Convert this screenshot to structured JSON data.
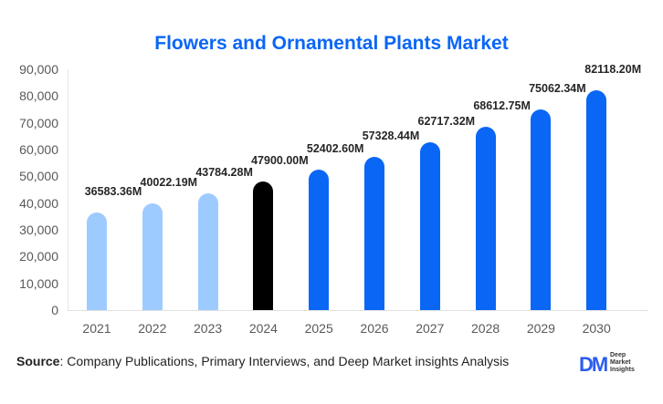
{
  "chart_data": {
    "type": "bar",
    "title": "Flowers and Ornamental Plants Market",
    "categories": [
      "2021",
      "2022",
      "2023",
      "2024",
      "2025",
      "2026",
      "2027",
      "2028",
      "2029",
      "2030"
    ],
    "values": [
      36583.36,
      40022.19,
      43784.28,
      47900.0,
      52402.6,
      57328.44,
      62717.32,
      68612.75,
      75062.34,
      82118.2
    ],
    "value_labels": [
      "36583.36M",
      "40022.19M",
      "43784.28M",
      "47900.00M",
      "52402.60M",
      "57328.44M",
      "62717.32M",
      "68612.75M",
      "75062.34M",
      "82118.20M"
    ],
    "bar_colors": [
      "#9ecbff",
      "#9ecbff",
      "#9ecbff",
      "#000000",
      "#0a66f5",
      "#0a66f5",
      "#0a66f5",
      "#0a66f5",
      "#0a66f5",
      "#0a66f5"
    ],
    "xlabel": "",
    "ylabel": "",
    "ylim": [
      0,
      90000
    ],
    "yticks": [
      "0",
      "10,000",
      "20,000",
      "30,000",
      "40,000",
      "50,000",
      "60,000",
      "70,000",
      "80,000",
      "90,000"
    ],
    "grid": false,
    "legend": "none"
  },
  "footer": {
    "source_label": "Source",
    "source_text": ": Company Publications, Primary Interviews, and Deep Market insights Analysis"
  },
  "logo": {
    "mark": "DM",
    "line1": "Deep",
    "line2": "Market",
    "line3": "Insights"
  }
}
